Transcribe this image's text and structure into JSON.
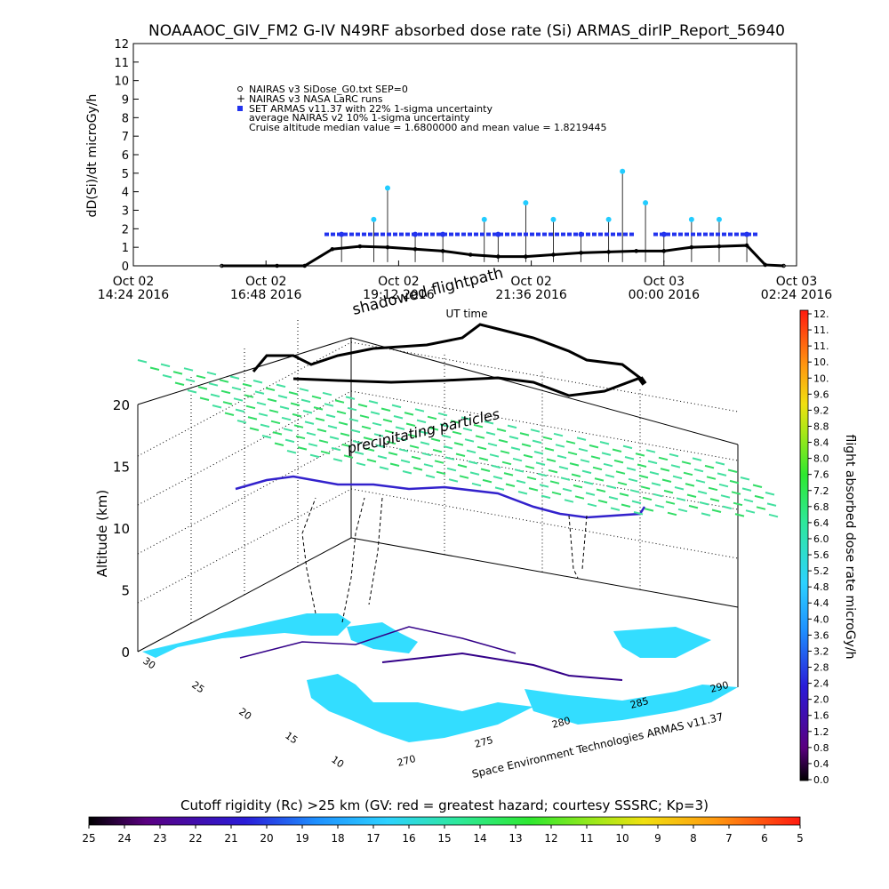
{
  "title": "NOAAAOC_GIV_FM2 G-IV   N49RF  absorbed dose rate (Si) ARMAS_dirIP_Report_56940",
  "top_chart": {
    "ylabel": "dD(Si)/dt microGy/h",
    "xlabel": "UT time",
    "yticks": [
      "0",
      "1",
      "2",
      "3",
      "4",
      "5",
      "6",
      "7",
      "8",
      "9",
      "10",
      "11",
      "12"
    ],
    "xticks": [
      {
        "l1": "Oct 02",
        "l2": "14:24 2016"
      },
      {
        "l1": "Oct 02",
        "l2": "16:48 2016"
      },
      {
        "l1": "Oct 02",
        "l2": "19:12 2016"
      },
      {
        "l1": "Oct 02",
        "l2": "21:36 2016"
      },
      {
        "l1": "Oct 03",
        "l2": "00:00 2016"
      },
      {
        "l1": "Oct 03",
        "l2": "02:24 2016"
      }
    ],
    "legend": [
      "NAIRAS v3 SiDose_G0.txt SEP=0",
      "NAIRAS v3 NASA LaRC runs",
      "SET ARMAS v11.37 with 22% 1-sigma uncertainty",
      "average NAIRAS v2 10% 1-sigma uncertainty",
      "Cruise altitude median value = 1.6800000 and mean value = 1.8219445"
    ]
  },
  "chart_data": [
    {
      "type": "scatter",
      "title": "NOAAAOC_GIV_FM2 G-IV   N49RF  absorbed dose rate (Si) ARMAS_dirIP_Report_56940",
      "xlabel": "UT time",
      "ylabel": "dD(Si)/dt microGy/h",
      "ylim": [
        0,
        12
      ],
      "xlim": [
        "2016-10-02 14:24",
        "2016-10-03 02:24"
      ],
      "series": [
        {
          "name": "NAIRAS v3 SiDose_G0.txt SEP=0",
          "x": [
            "16:00",
            "17:00",
            "17:30",
            "18:00",
            "18:30",
            "19:00",
            "19:30",
            "20:00",
            "20:30",
            "21:00",
            "21:30",
            "22:00",
            "22:30",
            "23:00",
            "23:30",
            "00:00",
            "00:30",
            "01:00",
            "01:30",
            "01:50",
            "02:10"
          ],
          "y": [
            0.0,
            0.0,
            0.0,
            0.9,
            1.05,
            1.0,
            0.9,
            0.8,
            0.6,
            0.5,
            0.5,
            0.6,
            0.7,
            0.75,
            0.8,
            0.8,
            1.0,
            1.05,
            1.1,
            0.05,
            0.0
          ]
        },
        {
          "name": "SET ARMAS v11.37 with 22% 1-sigma uncertainty",
          "x": [
            "18:10",
            "18:45",
            "19:00",
            "19:30",
            "20:00",
            "20:45",
            "21:00",
            "21:30",
            "22:00",
            "22:30",
            "23:00",
            "23:15",
            "23:40",
            "00:00",
            "00:30",
            "01:00",
            "01:30"
          ],
          "y": [
            1.7,
            2.5,
            4.2,
            1.7,
            1.7,
            2.5,
            1.7,
            3.4,
            2.5,
            1.7,
            2.5,
            5.1,
            3.4,
            1.7,
            2.5,
            2.5,
            1.7
          ]
        }
      ],
      "legend_placement": "top-left"
    },
    {
      "type": "scatter",
      "title": "",
      "zlabel": "Altitude (km)",
      "zticks": [
        "0",
        "5",
        "10",
        "15",
        "20"
      ],
      "xticks": [
        "270",
        "275",
        "280",
        "285",
        "290"
      ],
      "yticks": [
        "10",
        "15",
        "20",
        "25",
        "30"
      ],
      "annotations": [
        "shadowed flightpath",
        "precipitating particles"
      ],
      "colorbar": {
        "label": "flight absorbed dose rate microGy/h",
        "ticks": [
          "12.",
          "11.",
          "11.",
          "10.",
          "10.",
          "9.6",
          "9.2",
          "8.8",
          "8.4",
          "8.0",
          "7.6",
          "7.2",
          "6.8",
          "6.4",
          "6.0",
          "5.6",
          "5.2",
          "4.8",
          "4.4",
          "4.0",
          "3.6",
          "3.2",
          "2.8",
          "2.4",
          "2.0",
          "1.6",
          "1.2",
          "0.8",
          "0.4",
          "0.0"
        ]
      },
      "credit": "Space Environment Technologies ARMAS v11.37"
    }
  ],
  "bottom_bar": {
    "label": "Cutoff rigidity (Rc) >25 km (GV: red = greatest hazard; courtesy SSSRC; Kp=3)",
    "ticks": [
      "25",
      "24",
      "23",
      "22",
      "21",
      "20",
      "19",
      "18",
      "17",
      "16",
      "15",
      "14",
      "13",
      "12",
      "11",
      "10",
      "9",
      "8",
      "7",
      "6",
      "5"
    ]
  },
  "colors": {
    "armas": "#2233ee",
    "armas_high": "#22ccff",
    "nairas": "#000000",
    "land": "#33ddff",
    "grid_particles": "#44dd88"
  }
}
